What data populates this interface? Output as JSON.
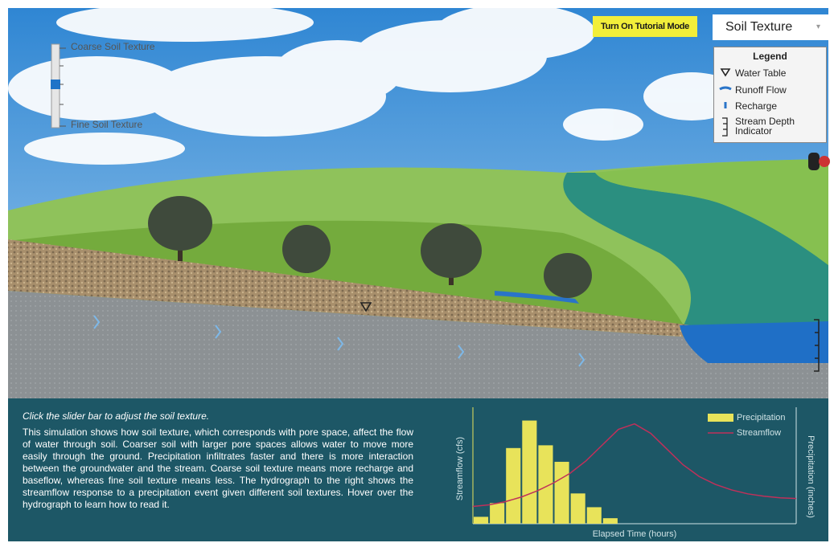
{
  "header": {
    "tutorial_button": "Turn On Tutorial Mode",
    "dropdown": "Soil Texture"
  },
  "legend": {
    "title": "Legend",
    "items": [
      "Water Table",
      "Runoff Flow",
      "Recharge",
      "Stream Depth Indicator"
    ]
  },
  "slider": {
    "top_label": "Coarse Soil Texture",
    "bottom_label": "Fine Soil Texture"
  },
  "instructions": {
    "prompt": "Click the slider bar to adjust the soil texture.",
    "description": "This simulation shows how soil texture, which corresponds with pore space, affect the flow of water through soil. Coarser soil with larger pore spaces allows water to move more easily through the ground. Precipitation infiltrates faster and there is more interaction between the groundwater and the stream. Coarse soil texture means more recharge and baseflow, whereas fine soil texture means less. The hydrograph to the right shows the streamflow response to a precipitation event given different soil textures. Hover over the hydrograph to learn how to read it."
  },
  "chart_data": {
    "type": "combo",
    "xlabel": "Elapsed Time (hours)",
    "ylabel": "Streamflow (cfs)",
    "y2label": "Precipitation (inches)",
    "xlim": [
      0,
      20
    ],
    "ylim": [
      0,
      140
    ],
    "y2lim": [
      0,
      80
    ],
    "legend": "upper right",
    "series": [
      {
        "name": "Precipitation",
        "type": "bar",
        "axis": "y2",
        "color": "#e8e35a",
        "bins": [
          0,
          1,
          2,
          3,
          4,
          5,
          6,
          7,
          8,
          9
        ],
        "values": [
          5,
          15,
          55,
          75,
          57,
          45,
          22,
          12,
          4
        ]
      },
      {
        "name": "Streamflow",
        "type": "line",
        "color": "#c0305a",
        "x": [
          0,
          1,
          2,
          3,
          4,
          5,
          6,
          7,
          8,
          9,
          10,
          11,
          12,
          13,
          14,
          15,
          16,
          17,
          18,
          19,
          20
        ],
        "values": [
          22,
          24,
          28,
          34,
          42,
          52,
          64,
          80,
          100,
          120,
          127,
          115,
          95,
          75,
          60,
          50,
          43,
          38,
          35,
          33,
          32
        ]
      }
    ]
  }
}
